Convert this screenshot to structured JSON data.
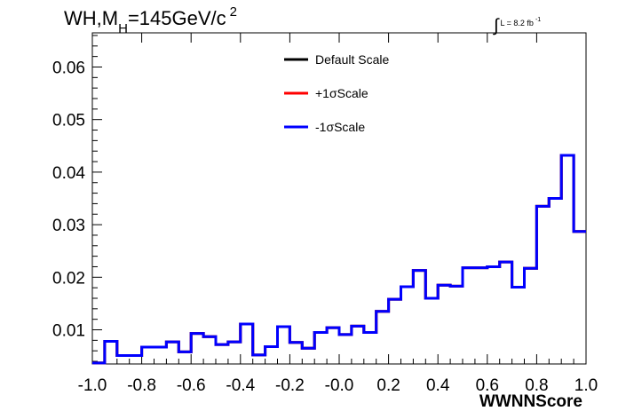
{
  "plot_title": {
    "prefix": "WH,M",
    "subscript": "H",
    "value": "=145GeV/c",
    "superscript": "2"
  },
  "luminosity": {
    "integral_symbol": "∫",
    "text": "L = 8.2 fb",
    "superscript": "-1"
  },
  "colors": {
    "default": "#000000",
    "plus": "#ff0000",
    "minus": "#0000ff",
    "frame": "#000000"
  },
  "chart_data": {
    "type": "line",
    "style": "step-histogram",
    "title": "WH,MH=145GeV/c2",
    "xlabel": "WWNNScore",
    "ylabel": "",
    "xlim": [
      -1.0,
      1.0
    ],
    "ylim": [
      0.0035,
      0.0665
    ],
    "x_ticks": [
      "-1.0",
      "-0.8",
      "-0.6",
      "-0.4",
      "-0.2",
      "-0.0",
      "0.2",
      "0.4",
      "0.6",
      "0.8",
      "1.0"
    ],
    "y_ticks": [
      "0.01",
      "0.02",
      "0.03",
      "0.04",
      "0.05",
      "0.06"
    ],
    "grid": false,
    "legend_position": "top-center",
    "bin_edges_start": -1.0,
    "bin_width": 0.05,
    "series": [
      {
        "name": "Default Scale",
        "color": "#000000",
        "values": [
          0.0037,
          0.0078,
          0.0051,
          0.0051,
          0.0067,
          0.0067,
          0.0077,
          0.0058,
          0.0093,
          0.0087,
          0.0072,
          0.0077,
          0.0111,
          0.0052,
          0.0068,
          0.0106,
          0.0076,
          0.0065,
          0.0095,
          0.0104,
          0.0091,
          0.0107,
          0.0095,
          0.0135,
          0.0158,
          0.0182,
          0.0213,
          0.016,
          0.0185,
          0.0183,
          0.0218,
          0.0218,
          0.022,
          0.0229,
          0.0181,
          0.0217,
          0.0335,
          0.035,
          0.0432,
          0.0287
        ]
      },
      {
        "name": "+1σScale",
        "color": "#ff0000",
        "values": [
          0.0037,
          0.0078,
          0.0051,
          0.0051,
          0.0067,
          0.0067,
          0.0077,
          0.0058,
          0.0093,
          0.0087,
          0.0072,
          0.0077,
          0.0111,
          0.0052,
          0.0068,
          0.0106,
          0.0076,
          0.0065,
          0.0095,
          0.0104,
          0.0091,
          0.0107,
          0.0095,
          0.0135,
          0.0158,
          0.0182,
          0.0213,
          0.016,
          0.0185,
          0.0183,
          0.0218,
          0.0218,
          0.022,
          0.0229,
          0.0181,
          0.0217,
          0.0335,
          0.035,
          0.0432,
          0.0287
        ]
      },
      {
        "name": "-1σScale",
        "color": "#0000ff",
        "values": [
          0.0037,
          0.0078,
          0.0051,
          0.0051,
          0.0067,
          0.0067,
          0.0077,
          0.0058,
          0.0093,
          0.0087,
          0.0072,
          0.0077,
          0.0111,
          0.0052,
          0.0068,
          0.0106,
          0.0076,
          0.0065,
          0.0095,
          0.0104,
          0.0091,
          0.0107,
          0.0095,
          0.0135,
          0.0158,
          0.0182,
          0.0213,
          0.016,
          0.0185,
          0.0183,
          0.0218,
          0.0218,
          0.022,
          0.0229,
          0.0181,
          0.0217,
          0.0335,
          0.035,
          0.0432,
          0.0287
        ]
      }
    ]
  }
}
